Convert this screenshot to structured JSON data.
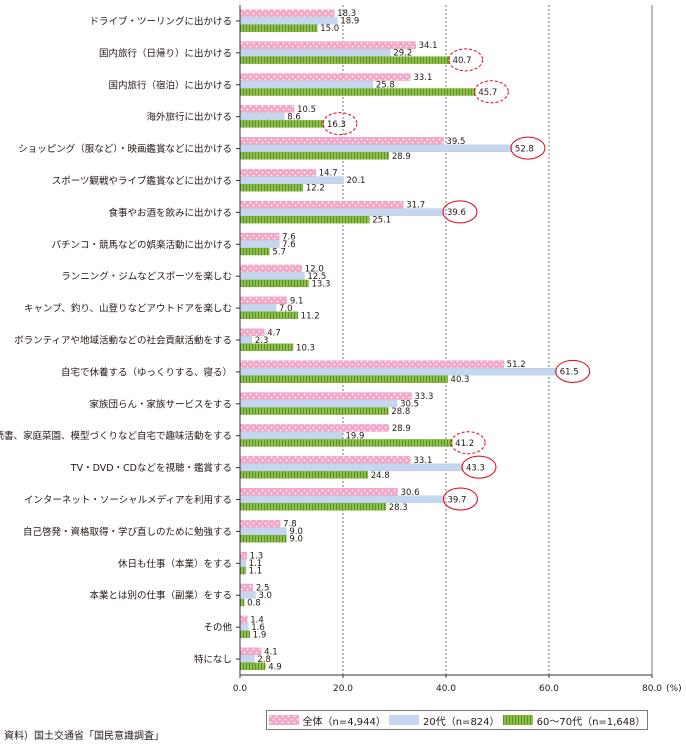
{
  "chart_data": {
    "type": "bar",
    "orientation": "horizontal",
    "categories": [
      "ドライブ・ツーリングに出かける",
      "国内旅行（日帰り）に出かける",
      "国内旅行（宿泊）に出かける",
      "海外旅行に出かける",
      "ショッピング（服など）・映画鑑賞などに出かける",
      "スポーツ観戦やライブ鑑賞などに出かける",
      "食事やお酒を飲みに出かける",
      "パチンコ・競馬などの娯楽活動に出かける",
      "ランニング・ジムなどスポーツを楽しむ",
      "キャンプ、釣り、山登りなどアウトドアを楽しむ",
      "ボランティアや地域活動などの社会貢献活動をする",
      "自宅で休養する（ゆっくりする、寝る）",
      "家族団らん・家族サービスをする",
      "読書、家庭菜園、模型づくりなど自宅で趣味活動をする",
      "TV・DVD・CDなどを視聴・鑑賞する",
      "インターネット・ソーシャルメディアを利用する",
      "自己啓発・資格取得・学び直しのために勉強する",
      "休日も仕事（本業）をする",
      "本業とは別の仕事（副業）をする",
      "その他",
      "特になし"
    ],
    "series": [
      {
        "name": "全体（n=4,944）",
        "color": "#f4a6c8",
        "values": [
          18.3,
          34.1,
          33.1,
          10.5,
          39.5,
          14.7,
          31.7,
          7.6,
          12.0,
          9.1,
          4.7,
          51.2,
          33.3,
          28.9,
          33.1,
          30.6,
          7.8,
          1.3,
          2.5,
          1.4,
          4.1
        ]
      },
      {
        "name": "20代（n=824）",
        "color": "#c5d7ee",
        "values": [
          18.9,
          29.2,
          25.8,
          8.6,
          52.8,
          20.1,
          39.6,
          7.6,
          12.5,
          7.0,
          2.3,
          61.5,
          30.5,
          19.9,
          43.3,
          39.7,
          9.0,
          1.1,
          3.0,
          1.6,
          2.8
        ]
      },
      {
        "name": "60～70代（n=1,648）",
        "color": "#7fb23a",
        "values": [
          15.0,
          40.7,
          45.7,
          16.3,
          28.9,
          12.2,
          25.1,
          5.7,
          13.3,
          11.2,
          10.3,
          40.3,
          28.8,
          41.2,
          24.8,
          28.3,
          9.0,
          1.1,
          0.8,
          1.9,
          4.9
        ]
      }
    ],
    "highlights": {
      "solid_circle": [
        {
          "category": 4,
          "series": 1
        },
        {
          "category": 6,
          "series": 1
        },
        {
          "category": 11,
          "series": 1
        },
        {
          "category": 14,
          "series": 1
        },
        {
          "category": 15,
          "series": 1
        }
      ],
      "dashed_circle": [
        {
          "category": 1,
          "series": 2
        },
        {
          "category": 2,
          "series": 2
        },
        {
          "category": 3,
          "series": 2
        },
        {
          "category": 13,
          "series": 2
        }
      ]
    },
    "xlim": [
      0,
      80
    ],
    "xticks": [
      "0.0",
      "20.0",
      "40.0",
      "60.0",
      "80.0"
    ],
    "x_unit": "(%)",
    "grid": "vertical dashed at 20, 40, 60",
    "legend_position": "bottom"
  },
  "source": "資料）国土交通省「国民意識調査」"
}
